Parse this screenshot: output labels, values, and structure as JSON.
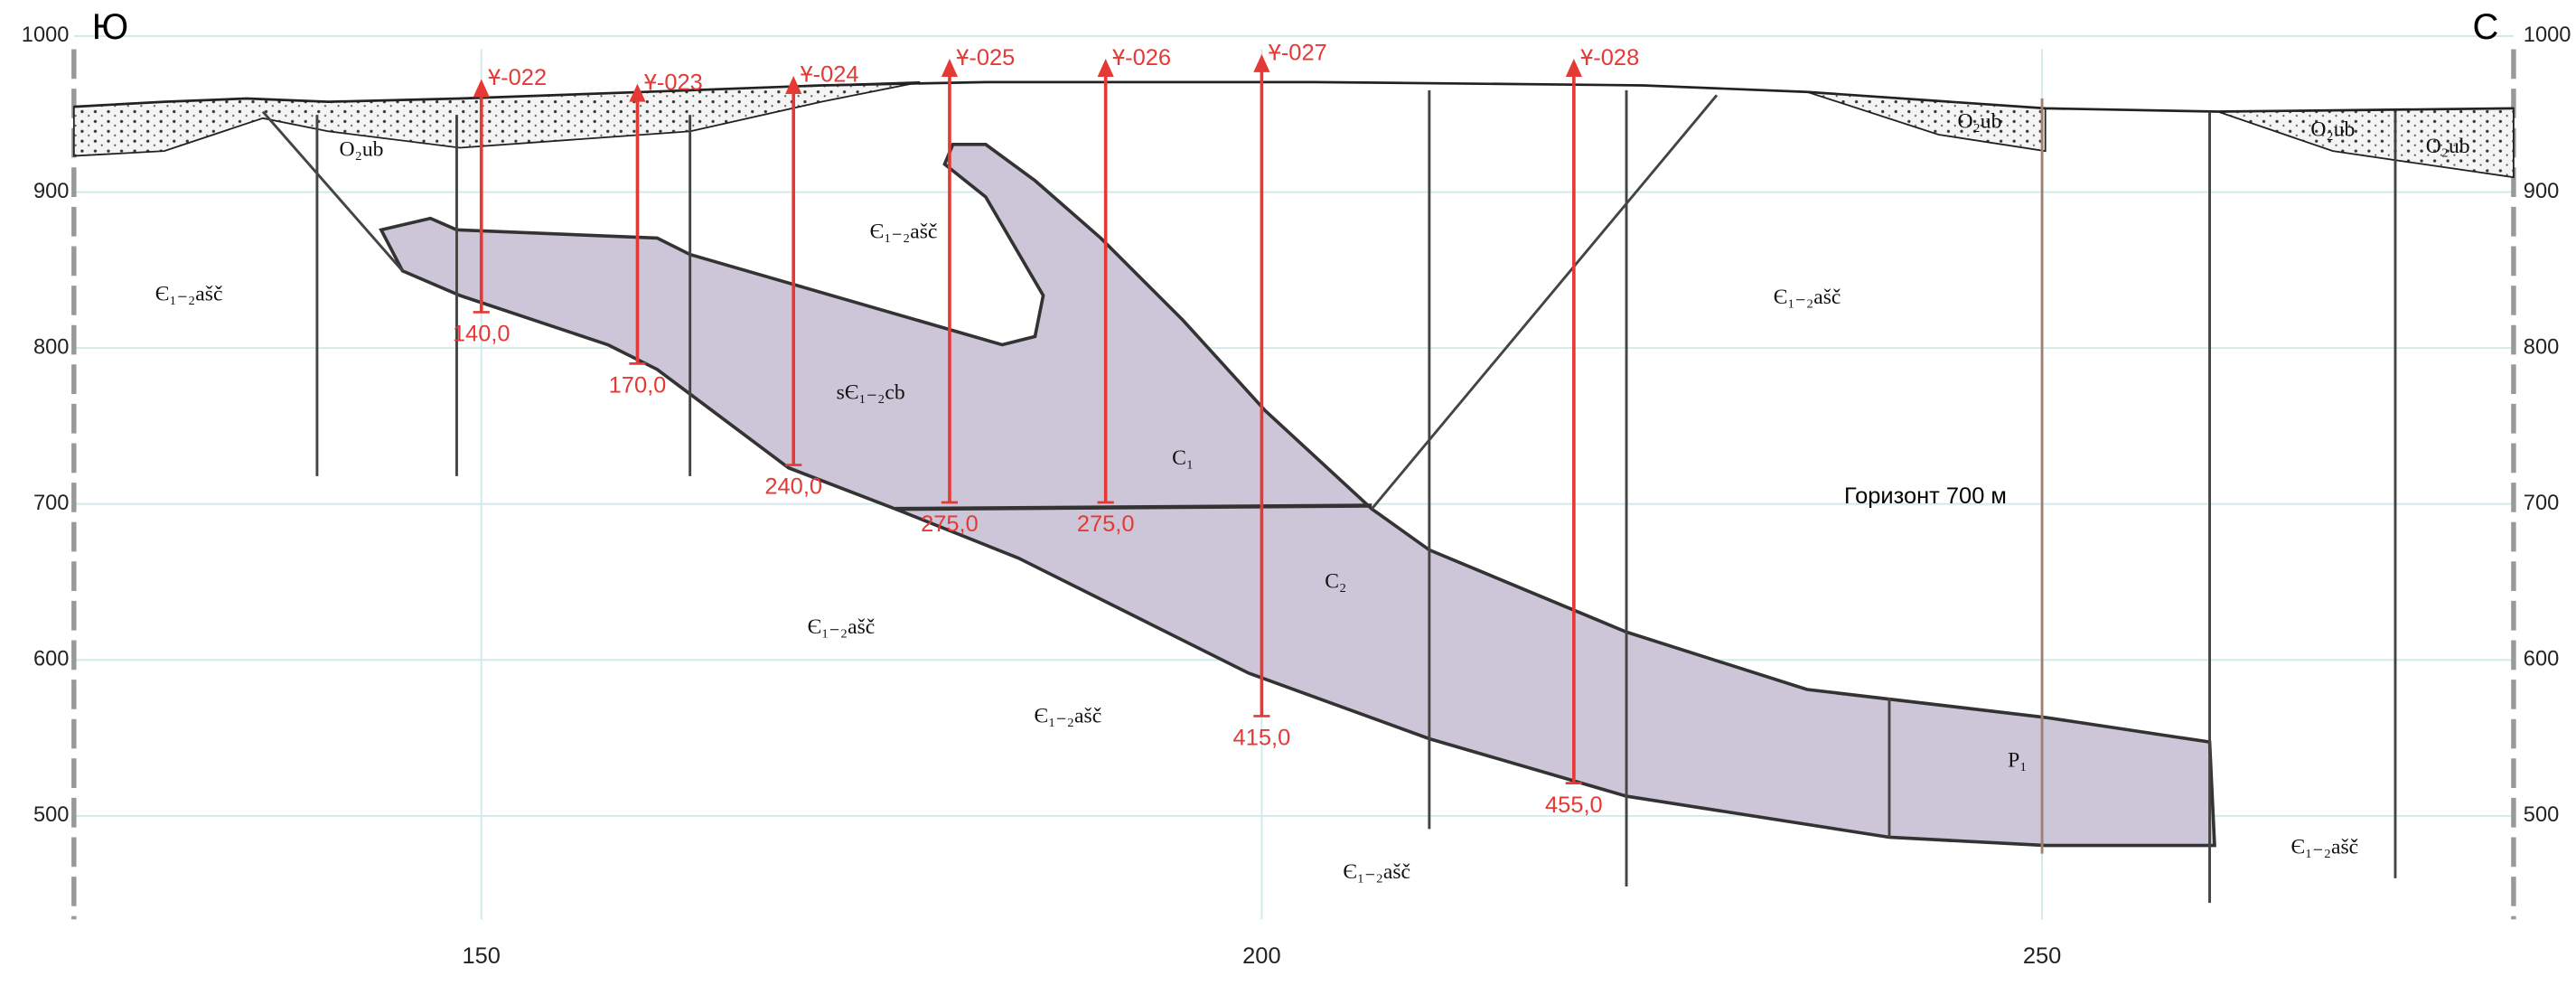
{
  "corners": {
    "left": "Ю",
    "right": "С"
  },
  "elevation_ticks": [
    1000,
    900,
    800,
    700,
    600,
    500
  ],
  "station_ticks": [
    150,
    200,
    250
  ],
  "boreholes": [
    {
      "name": "Ұ-022",
      "depth": {
        "value": 140,
        "label": "140,0"
      }
    },
    {
      "name": "Ұ-023",
      "depth": {
        "value": 170,
        "label": "170,0"
      }
    },
    {
      "name": "Ұ-024",
      "depth": {
        "value": 240,
        "label": "240,0"
      }
    },
    {
      "name": "Ұ-025",
      "depth": {
        "value": 275,
        "label": "275,0"
      }
    },
    {
      "name": "Ұ-026",
      "depth": {
        "value": 275,
        "label": "275,0"
      }
    },
    {
      "name": "Ұ-027",
      "depth": {
        "value": 415,
        "label": "415,0"
      }
    },
    {
      "name": "Ұ-028",
      "depth": {
        "value": 455,
        "label": "455,0"
      }
    }
  ],
  "horizon": "Горизонт 700 м",
  "labels": [
    "Є₁₋₂ašč",
    "O₂ub",
    "Є₁₋₂ašč",
    "sЄ₁₋₂cb",
    "C₁",
    "C₂",
    "Є₁₋₂ašč",
    "Є₁₋₂ašč",
    "Є₁₋₂ašč",
    "Є₁₋₂ašč",
    "O₂ub",
    "O₂ub",
    "O₂ub",
    "P₁",
    "Є₁₋₂ašč"
  ]
}
